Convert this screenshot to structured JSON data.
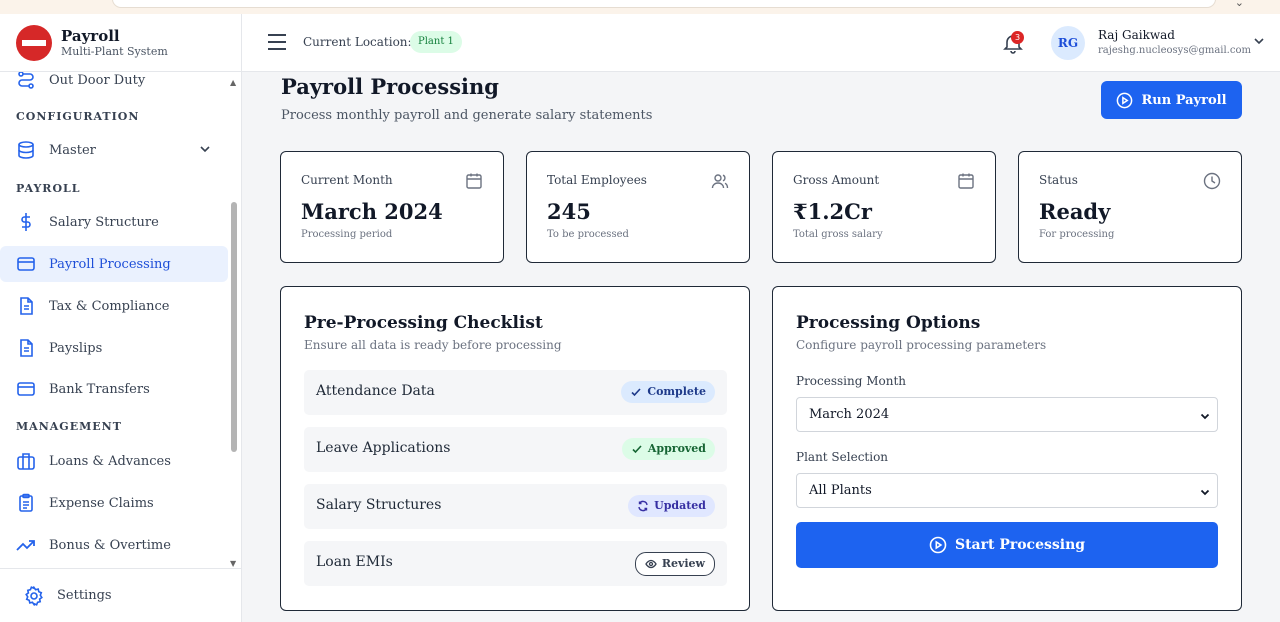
{
  "app": {
    "title": "Payroll",
    "subtitle": "Multi-Plant System"
  },
  "sidebar": {
    "items": [
      {
        "label": "Out Door Duty",
        "icon": "route-icon"
      },
      {
        "label": "Master",
        "icon": "database-icon"
      },
      {
        "label": "Salary Structure",
        "icon": "dollar-icon"
      },
      {
        "label": "Payroll Processing",
        "icon": "credit-card-icon",
        "active": true
      },
      {
        "label": "Tax & Compliance",
        "icon": "document-icon"
      },
      {
        "label": "Payslips",
        "icon": "document-icon"
      },
      {
        "label": "Bank Transfers",
        "icon": "credit-card-icon"
      },
      {
        "label": "Loans & Advances",
        "icon": "briefcase-icon"
      },
      {
        "label": "Expense Claims",
        "icon": "clipboard-icon"
      },
      {
        "label": "Bonus & Overtime",
        "icon": "trending-up-icon"
      }
    ],
    "sections": [
      "CONFIGURATION",
      "PAYROLL",
      "MANAGEMENT"
    ],
    "settings_label": "Settings"
  },
  "header": {
    "location_label": "Current Location:",
    "location_value": "Plant 1",
    "notification_count": "3",
    "user_initials": "RG",
    "user_name": "Raj Gaikwad",
    "user_email": "rajeshg.nucleosys@gmail.com"
  },
  "page": {
    "title": "Payroll Processing",
    "subtitle": "Process monthly payroll and generate salary statements",
    "run_button": "Run Payroll"
  },
  "stats": [
    {
      "label": "Current Month",
      "value": "March 2024",
      "sub": "Processing period",
      "icon": "calendar-icon"
    },
    {
      "label": "Total Employees",
      "value": "245",
      "sub": "To be processed",
      "icon": "users-icon"
    },
    {
      "label": "Gross Amount",
      "value": "₹1.2Cr",
      "sub": "Total gross salary",
      "icon": "calendar-icon"
    },
    {
      "label": "Status",
      "value": "Ready",
      "sub": "For processing",
      "icon": "clock-icon"
    }
  ],
  "checklist": {
    "title": "Pre-Processing Checklist",
    "subtitle": "Ensure all data is ready before processing",
    "rows": [
      {
        "label": "Attendance Data",
        "status": "Complete"
      },
      {
        "label": "Leave Applications",
        "status": "Approved"
      },
      {
        "label": "Salary Structures",
        "status": "Updated"
      },
      {
        "label": "Loan EMIs",
        "status": "Review"
      }
    ]
  },
  "options": {
    "title": "Processing Options",
    "subtitle": "Configure payroll processing parameters",
    "month_label": "Processing Month",
    "month_value": "March 2024",
    "plant_label": "Plant Selection",
    "plant_value": "All Plants",
    "start_button": "Start Processing"
  },
  "colors": {
    "primary": "#1d63f0",
    "brand_red": "#d62828",
    "active_bg": "#eaf1fe"
  }
}
